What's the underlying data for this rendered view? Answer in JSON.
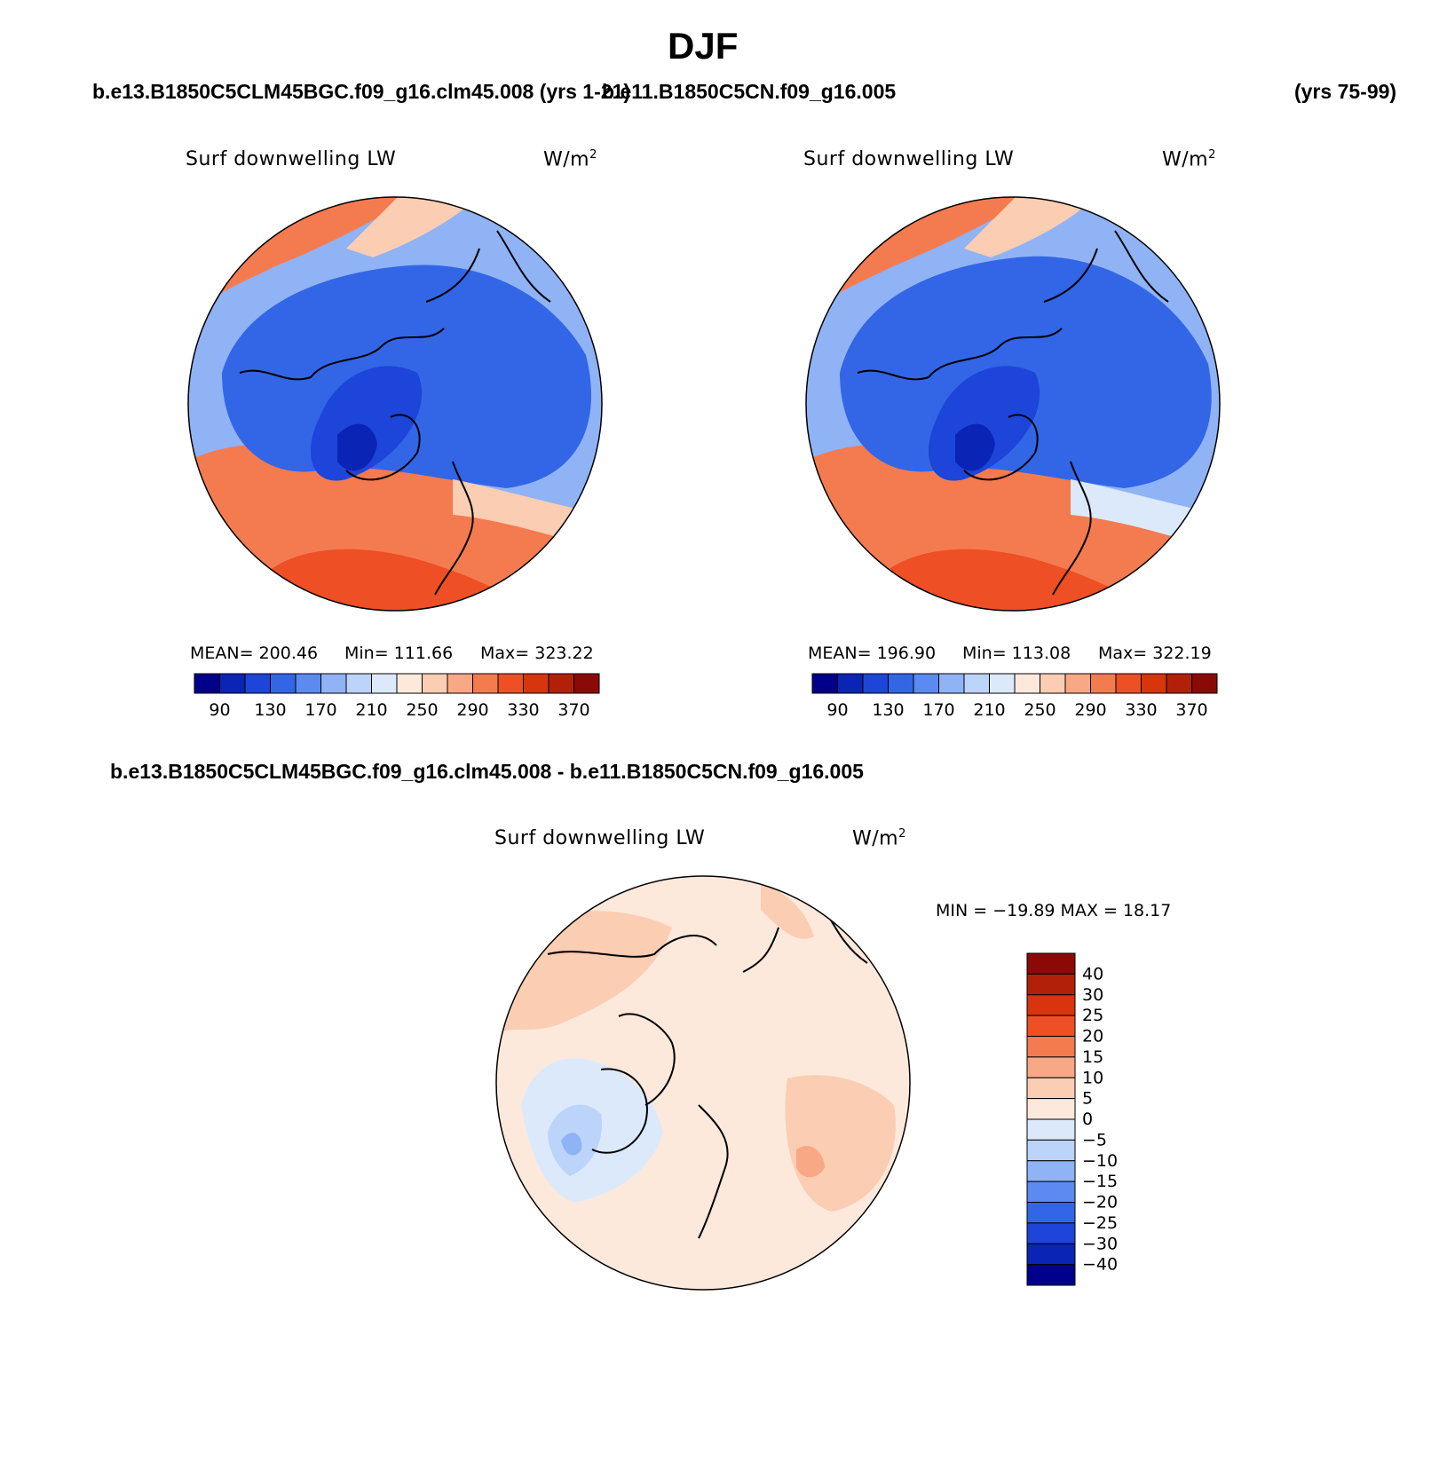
{
  "header": {
    "title": "DJF",
    "case_a": "b.e13.B1850C5CLM45BGC.f09_g16.clm45.008 (yrs 1-21)",
    "case_b": "b.e11.B1850C5CN.f09_g16.005",
    "case_b_years": "(yrs 75-99)",
    "diff_title": "b.e13.B1850C5CLM45BGC.f09_g16.clm45.008 - b.e11.B1850C5CN.f09_g16.005"
  },
  "panels": [
    {
      "variable": "Surf downwelling LW",
      "units": "W/m",
      "units_exp": "2",
      "mean_label": "MEAN= 200.46",
      "min_label": "Min= 111.66",
      "max_label": "Max= 323.22",
      "mean": 200.46,
      "min": 111.66,
      "max": 323.22
    },
    {
      "variable": "Surf downwelling LW",
      "units": "W/m",
      "units_exp": "2",
      "mean_label": "MEAN= 196.90",
      "min_label": "Min= 113.08",
      "max_label": "Max= 322.19",
      "mean": 196.9,
      "min": 113.08,
      "max": 322.19
    }
  ],
  "diff_panel": {
    "variable": "Surf downwelling LW",
    "units": "W/m",
    "units_exp": "2",
    "minmax_label": "MIN = −19.89 MAX =   18.17",
    "min": -19.89,
    "max": 18.17
  },
  "colorbar_abs": {
    "tick_labels": [
      "90",
      "130",
      "170",
      "210",
      "250",
      "290",
      "330",
      "370"
    ],
    "colors": [
      "#00008b",
      "#0a24b5",
      "#1d45d9",
      "#3366e6",
      "#5b8af0",
      "#8fb3f5",
      "#bcd3fa",
      "#dce9fb",
      "#fce9dc",
      "#fbcdb3",
      "#f8a884",
      "#f47b4f",
      "#ee4f25",
      "#d8340d",
      "#b3200a",
      "#8b0a08"
    ]
  },
  "colorbar_diff": {
    "tick_labels": [
      "40",
      "30",
      "25",
      "20",
      "15",
      "10",
      "5",
      "0",
      "−5",
      "−10",
      "−15",
      "−20",
      "−25",
      "−30",
      "−40"
    ],
    "colors": [
      "#8b0a08",
      "#b3200a",
      "#d8340d",
      "#ee4f25",
      "#f47b4f",
      "#f8a884",
      "#fbcdb3",
      "#fce9dc",
      "#dce9fb",
      "#bcd3fa",
      "#8fb3f5",
      "#5b8af0",
      "#3366e6",
      "#1d45d9",
      "#0a24b5",
      "#00008b"
    ]
  },
  "map_colors": {
    "land_line": "#000000",
    "deep_blue": "#1d45d9",
    "mid_blue": "#3366e6",
    "light_blue": "#8fb3f5",
    "pale_blue": "#dce9fb",
    "pale_orange": "#fce9dc",
    "orange": "#f8a884",
    "red_orange": "#ee4f25"
  }
}
